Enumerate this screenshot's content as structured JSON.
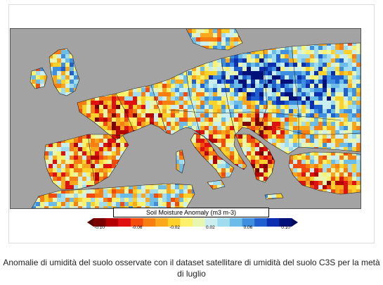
{
  "legend": {
    "title": "Soil Moisture Anomaly (m3 m-3)",
    "ticks": [
      "-0.10",
      "-0.06",
      "-0.02",
      "0.02",
      "0.06",
      "0.10"
    ],
    "colors": [
      "#7a0000",
      "#b40000",
      "#e01010",
      "#f44a0c",
      "#f87e12",
      "#fba71b",
      "#fdd02a",
      "#fdf06a",
      "#e8f6b0",
      "#cbeef0",
      "#9fdcf0",
      "#6bbde8",
      "#3f8fe0",
      "#1f5fd0",
      "#0c2fb0",
      "#00127a"
    ]
  },
  "caption": "Anomalie di umidità del suolo osservate con il dataset satellitare di umidità del suolo C3S per la metà di luglio",
  "colors": {
    "sea": "#a3a3a3",
    "background": "#ffffff"
  }
}
